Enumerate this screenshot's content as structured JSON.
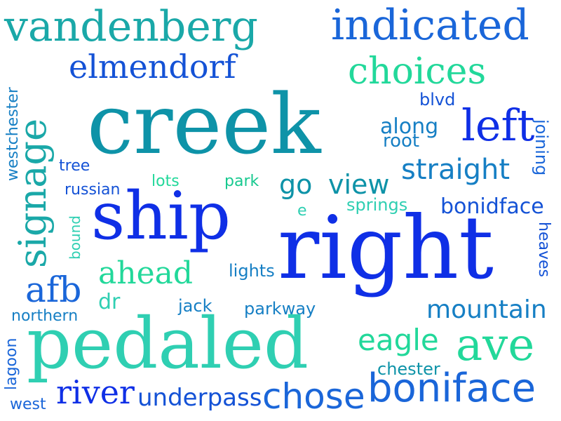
{
  "words": {
    "vandenberg": "vandenberg",
    "indicated": "indicated",
    "elmendorf": "elmendorf",
    "choices": "choices",
    "westchester": "westchester",
    "signage": "signage",
    "creek": "creek",
    "blvd": "blvd",
    "joining": "joining",
    "left": "left",
    "along": "along",
    "root": "root",
    "tree": "tree",
    "straight": "straight",
    "lots": "lots",
    "park": "park",
    "go": "go",
    "view": "view",
    "russian": "russian",
    "ship": "ship",
    "e": "e",
    "springs": "springs",
    "bonidface": "bonidface",
    "bound": "bound",
    "right": "right",
    "heaves": "heaves",
    "ahead": "ahead",
    "lights": "lights",
    "afb": "afb",
    "dr": "dr",
    "jack": "jack",
    "parkway": "parkway",
    "mountain": "mountain",
    "northern": "northern",
    "pedaled": "pedaled",
    "eagle": "eagle",
    "ave": "ave",
    "lagoon": "lagoon",
    "chester": "chester",
    "boniface": "boniface",
    "river": "river",
    "underpass": "underpass",
    "chose": "chose",
    "west": "west"
  },
  "colors": {
    "background": "#ffffff",
    "teal": "#0e93a8",
    "mint": "#17c98f",
    "green": "#22d89a",
    "cobalt": "#1452d6",
    "blue": "#0f2fe6",
    "sky": "#1a66d9"
  }
}
